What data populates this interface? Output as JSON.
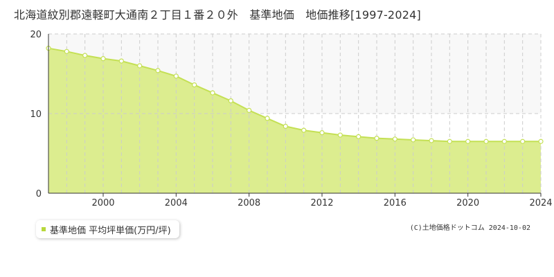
{
  "title": "北海道紋別郡遠軽町大通南２丁目１番２０外　基準地価　地価推移[1997-2024]",
  "legend": {
    "label": "基準地価 平均坪単価(万円/坪)",
    "swatch_color": "#b8d83c"
  },
  "copyright": "(C)土地価格ドットコム 2024-10-02",
  "colors": {
    "area_fill": "#dced8f",
    "line": "#c4e054",
    "marker_fill": "#ffffff",
    "marker_stroke": "#c4e054",
    "grid": "#cccccc",
    "axis": "#333333",
    "upper_band": "#f8f8f8"
  },
  "chart_data": {
    "type": "area",
    "title": "北海道紋別郡遠軽町大通南２丁目１番２０外　基準地価　地価推移[1997-2024]",
    "xlabel": "",
    "ylabel": "",
    "x": [
      1997,
      1998,
      1999,
      2000,
      2001,
      2002,
      2003,
      2004,
      2005,
      2006,
      2007,
      2008,
      2009,
      2010,
      2011,
      2012,
      2013,
      2014,
      2015,
      2016,
      2017,
      2018,
      2019,
      2020,
      2021,
      2022,
      2023,
      2024
    ],
    "series": [
      {
        "name": "基準地価 平均坪単価(万円/坪)",
        "values": [
          18.2,
          17.8,
          17.3,
          16.9,
          16.6,
          16.0,
          15.4,
          14.7,
          13.6,
          12.6,
          11.6,
          10.4,
          9.4,
          8.4,
          7.9,
          7.6,
          7.3,
          7.1,
          6.9,
          6.8,
          6.7,
          6.6,
          6.5,
          6.5,
          6.5,
          6.5,
          6.5,
          6.5
        ]
      }
    ],
    "xlim": [
      1997,
      2024
    ],
    "ylim": [
      0,
      20
    ],
    "x_ticks": [
      2000,
      2004,
      2008,
      2012,
      2016,
      2020,
      2024
    ],
    "y_ticks": [
      0,
      10,
      20
    ],
    "grid": true,
    "legend_position": "bottom-left"
  }
}
